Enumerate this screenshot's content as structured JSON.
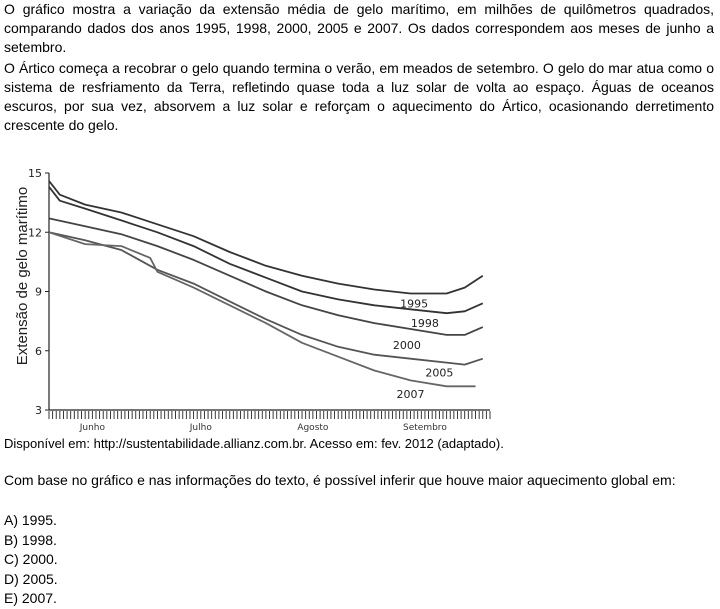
{
  "text": {
    "paragraph1": "O gráfico mostra a variação da extensão média de gelo marítimo, em milhões de quilômetros quadrados, comparando dados dos anos 1995, 1998, 2000, 2005 e 2007. Os dados correspondem aos meses de junho a setembro.",
    "paragraph2": "O Ártico começa a recobrar o gelo quando termina o verão, em meados de setembro. O gelo do mar atua como o sistema de resfriamento da Terra, refletindo quase toda a luz solar de volta ao espaço. Águas de oceanos escuros, por sua vez, absorvem a luz solar e reforçam o aquecimento do Ártico, ocasionando derretimento crescente do gelo.",
    "source": "Disponível em: http://sustentabilidade.allianz.com.br. Acesso em: fev. 2012 (adaptado).",
    "question": "Com base no gráfico e nas informações do texto, é possível inferir que houve maior aquecimento global em:",
    "options": [
      "A) 1995.",
      "B) 1998.",
      "C) 2000.",
      "D) 2005.",
      "E) 2007."
    ]
  },
  "chart_data": {
    "type": "line",
    "ylabel": "Extensão de gelo marítimo",
    "xlabel": "",
    "ylim": [
      3,
      15
    ],
    "yticks": [
      3,
      6,
      9,
      12,
      15
    ],
    "months": [
      "Junho",
      "Julho",
      "Agosto",
      "Setembro"
    ],
    "x_range_days": [
      0,
      122
    ],
    "grid": false,
    "series": [
      {
        "name": "1995",
        "x": [
          0,
          3,
          10,
          20,
          30,
          40,
          50,
          60,
          70,
          80,
          90,
          100,
          110,
          115,
          120
        ],
        "values": [
          14.6,
          13.9,
          13.4,
          13.0,
          12.4,
          11.8,
          11.0,
          10.3,
          9.8,
          9.4,
          9.1,
          8.9,
          8.9,
          9.2,
          9.8
        ]
      },
      {
        "name": "1998",
        "x": [
          0,
          3,
          10,
          20,
          30,
          40,
          50,
          60,
          70,
          80,
          90,
          100,
          110,
          115,
          120
        ],
        "values": [
          14.3,
          13.6,
          13.2,
          12.6,
          12.0,
          11.3,
          10.4,
          9.7,
          9.0,
          8.6,
          8.3,
          8.1,
          7.9,
          8.0,
          8.4
        ]
      },
      {
        "name": "2000",
        "x": [
          0,
          10,
          20,
          30,
          40,
          50,
          60,
          70,
          80,
          90,
          100,
          110,
          115,
          120
        ],
        "values": [
          12.7,
          12.3,
          11.9,
          11.3,
          10.6,
          9.8,
          9.0,
          8.3,
          7.8,
          7.4,
          7.1,
          6.8,
          6.8,
          7.2
        ]
      },
      {
        "name": "2005",
        "x": [
          0,
          10,
          20,
          25,
          30,
          40,
          50,
          60,
          70,
          80,
          90,
          100,
          110,
          115,
          120
        ],
        "values": [
          12.0,
          11.6,
          11.1,
          10.6,
          10.1,
          9.4,
          8.5,
          7.6,
          6.8,
          6.2,
          5.8,
          5.6,
          5.4,
          5.3,
          5.6
        ]
      },
      {
        "name": "2007",
        "x": [
          0,
          10,
          20,
          28,
          30,
          40,
          50,
          60,
          70,
          80,
          90,
          100,
          110,
          118
        ],
        "values": [
          12.0,
          11.4,
          11.3,
          10.7,
          10.0,
          9.2,
          8.3,
          7.4,
          6.4,
          5.7,
          5.0,
          4.5,
          4.2,
          4.2
        ]
      }
    ]
  }
}
